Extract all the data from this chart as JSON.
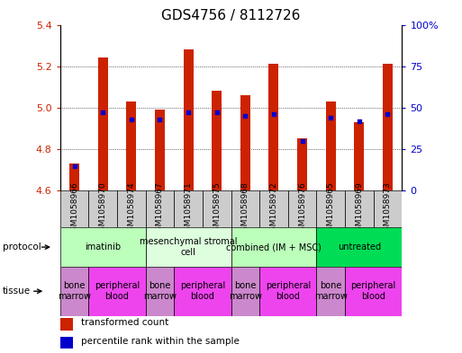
{
  "title": "GDS4756 / 8112726",
  "samples": [
    "GSM1058966",
    "GSM1058970",
    "GSM1058974",
    "GSM1058967",
    "GSM1058971",
    "GSM1058975",
    "GSM1058968",
    "GSM1058972",
    "GSM1058976",
    "GSM1058965",
    "GSM1058969",
    "GSM1058973"
  ],
  "transformed_count": [
    4.73,
    5.24,
    5.03,
    4.99,
    5.28,
    5.08,
    5.06,
    5.21,
    4.85,
    5.03,
    4.93,
    5.21
  ],
  "percentile_rank": [
    15,
    47,
    43,
    43,
    47,
    47,
    45,
    46,
    30,
    44,
    42,
    46
  ],
  "ylim_left": [
    4.6,
    5.4
  ],
  "ylim_right": [
    0,
    100
  ],
  "yticks_left": [
    4.6,
    4.8,
    5.0,
    5.2,
    5.4
  ],
  "yticks_right": [
    0,
    25,
    50,
    75,
    100
  ],
  "ytick_labels_right": [
    "0",
    "25",
    "50",
    "75",
    "100%"
  ],
  "bar_color": "#cc2200",
  "dot_color": "#0000cc",
  "bar_bottom": 4.6,
  "protocols": [
    {
      "label": "imatinib",
      "span": [
        0,
        3
      ],
      "color": "#bbffbb"
    },
    {
      "label": "mesenchymal stromal\ncell",
      "span": [
        3,
        6
      ],
      "color": "#ddffdd"
    },
    {
      "label": "combined (IM + MSC)",
      "span": [
        6,
        9
      ],
      "color": "#bbffbb"
    },
    {
      "label": "untreated",
      "span": [
        9,
        12
      ],
      "color": "#00dd55"
    }
  ],
  "tissues": [
    {
      "label": "bone\nmarrow",
      "span": [
        0,
        1
      ],
      "color": "#cc88cc"
    },
    {
      "label": "peripheral\nblood",
      "span": [
        1,
        3
      ],
      "color": "#ee44ee"
    },
    {
      "label": "bone\nmarrow",
      "span": [
        3,
        4
      ],
      "color": "#cc88cc"
    },
    {
      "label": "peripheral\nblood",
      "span": [
        4,
        6
      ],
      "color": "#ee44ee"
    },
    {
      "label": "bone\nmarrow",
      "span": [
        6,
        7
      ],
      "color": "#cc88cc"
    },
    {
      "label": "peripheral\nblood",
      "span": [
        7,
        9
      ],
      "color": "#ee44ee"
    },
    {
      "label": "bone\nmarrow",
      "span": [
        9,
        10
      ],
      "color": "#cc88cc"
    },
    {
      "label": "peripheral\nblood",
      "span": [
        10,
        12
      ],
      "color": "#ee44ee"
    }
  ],
  "legend_items": [
    {
      "label": "transformed count",
      "color": "#cc2200"
    },
    {
      "label": "percentile rank within the sample",
      "color": "#0000cc"
    }
  ],
  "sample_box_color": "#cccccc",
  "title_fontsize": 11,
  "tick_fontsize": 8,
  "sample_fontsize": 6.5,
  "protocol_fontsize": 7,
  "tissue_fontsize": 7,
  "legend_fontsize": 7.5
}
